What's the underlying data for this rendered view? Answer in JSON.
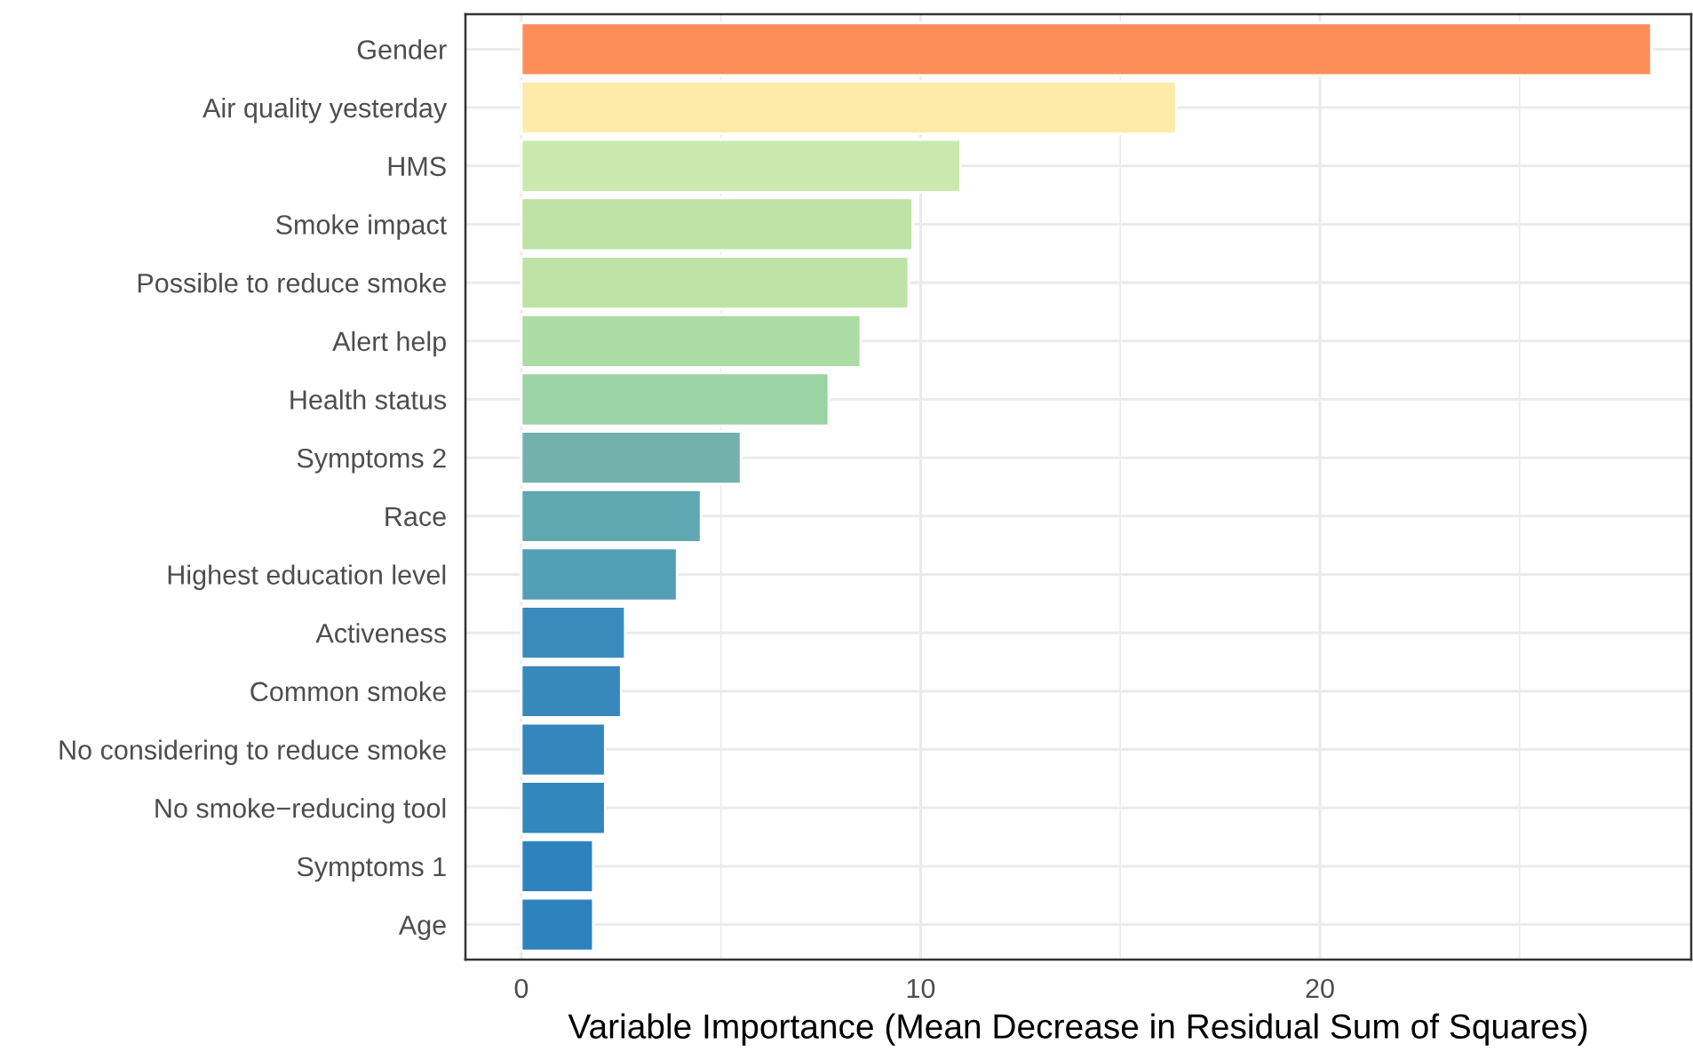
{
  "chart_data": {
    "type": "bar",
    "orientation": "horizontal",
    "xlabel": "Variable Importance (Mean Decrease in Residual Sum of Squares)",
    "categories": [
      "Gender",
      "Air quality yesterday",
      "HMS",
      "Smoke impact",
      "Possible to reduce smoke",
      "Alert help",
      "Health status",
      "Symptoms 2",
      "Race",
      "Highest education level",
      "Activeness",
      "Common smoke",
      "No considering to reduce smoke",
      "No smoke−reducing tool",
      "Symptoms 1",
      "Age"
    ],
    "values": [
      28.3,
      16.4,
      11.0,
      9.8,
      9.7,
      8.5,
      7.7,
      5.5,
      4.5,
      3.9,
      2.6,
      2.5,
      2.1,
      2.1,
      1.8,
      1.8
    ],
    "colors": [
      "#fc8d59",
      "#feeaa9",
      "#cbe9ae",
      "#bde3a6",
      "#bde3a6",
      "#abdca3",
      "#9bd3a4",
      "#72b1ac",
      "#5fa8b2",
      "#529eb6",
      "#3a8bbb",
      "#3889bb",
      "#3387bc",
      "#3287bc",
      "#2e83be",
      "#2e83be"
    ],
    "xlim": [
      -1.4,
      29.3
    ],
    "xticks": [
      0,
      {
        "value": 5,
        "label": null
      },
      10,
      {
        "value": 15,
        "label": null
      },
      20,
      {
        "value": 25,
        "label": null
      }
    ],
    "grid": true
  }
}
